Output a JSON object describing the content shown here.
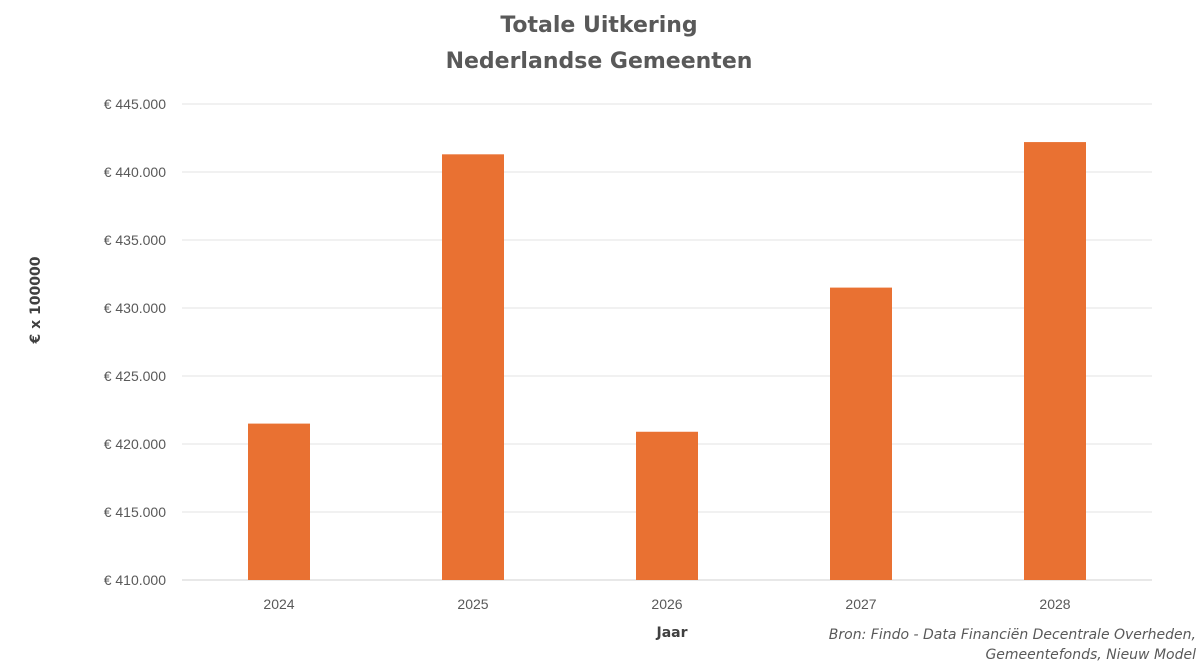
{
  "chart_data": {
    "type": "bar",
    "title": "Totale Uitkering",
    "subtitle": "Nederlandse Gemeenten",
    "xlabel": "Jaar",
    "ylabel": "€ x 100000",
    "categories": [
      "2024",
      "2025",
      "2026",
      "2027",
      "2028"
    ],
    "values": [
      421500,
      441300,
      420900,
      431500,
      442200
    ],
    "ylim": [
      410000,
      445000
    ],
    "y_ticks": [
      410000,
      415000,
      420000,
      425000,
      430000,
      435000,
      440000,
      445000
    ],
    "y_tick_labels": [
      "€ 410.000",
      "€ 415.000",
      "€ 420.000",
      "€ 425.000",
      "€ 430.000",
      "€ 435.000",
      "€ 440.000",
      "€ 445.000"
    ],
    "grid": true,
    "legend": "none",
    "bar_color": "#e97132",
    "source_lines": [
      "Bron: Findo - Data Financiën Decentrale Overheden,",
      "Gemeentefonds, Nieuw Model"
    ]
  }
}
